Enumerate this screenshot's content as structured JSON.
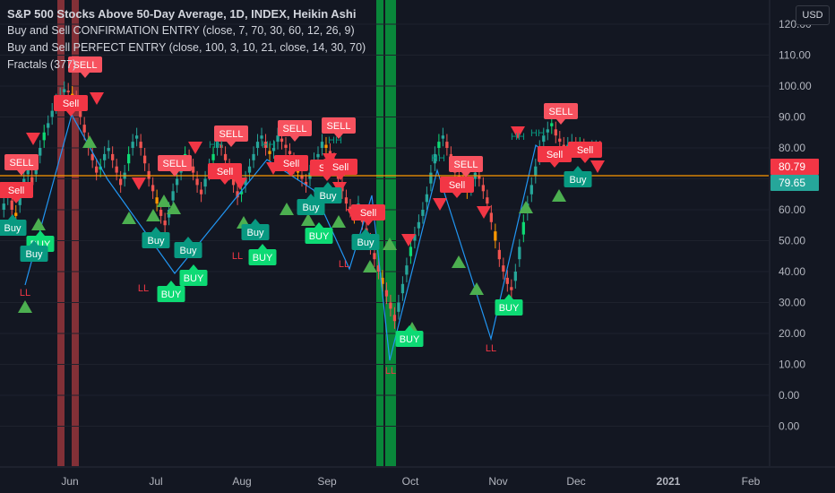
{
  "legend": {
    "title": "S&P 500 Stocks Above 50-Day Average, 1D, INDEX, Heikin Ashi",
    "line1": "Buy and Sell CONFIRMATION ENTRY (close, 7, 70, 30, 60, 12, 26, 9)",
    "line2": "Buy and Sell PERFECT ENTRY (close, 100, 3, 10, 21, close, 14, 30, 70)",
    "line3": "Fractals (377)"
  },
  "currency_button": "USD",
  "colors": {
    "bg": "#131722",
    "up": "#26a69a",
    "down": "#ef5350",
    "sell": "#f23645",
    "buy": "#0dda74",
    "orange": "#ff9800",
    "zig": "#2196f3"
  },
  "chart_data": {
    "type": "candlestick",
    "yticks": [
      0,
      10,
      20,
      30,
      40,
      50,
      60,
      70,
      80,
      90,
      100,
      110,
      120
    ],
    "xticks": [
      "Jun",
      "Jul",
      "Aug",
      "Sep",
      "Oct",
      "Nov",
      "Dec",
      "2021",
      "Feb"
    ],
    "price_tags": [
      {
        "value": "80.79",
        "color": "#f23645"
      },
      {
        "value": "79.65",
        "color": "#26a69a"
      }
    ],
    "horizontal_line": 78.5,
    "closes": [
      62,
      66,
      60,
      58,
      65,
      70,
      73,
      68,
      75,
      80,
      85,
      88,
      92,
      95,
      97,
      99,
      98,
      97,
      95,
      90,
      85,
      80,
      76,
      72,
      74,
      78,
      80,
      76,
      72,
      68,
      72,
      78,
      82,
      84,
      80,
      75,
      70,
      66,
      62,
      58,
      55,
      60,
      66,
      70,
      74,
      78,
      76,
      72,
      68,
      65,
      70,
      74,
      78,
      82,
      80,
      76,
      72,
      68,
      64,
      66,
      70,
      74,
      78,
      82,
      84,
      80,
      78,
      80,
      84,
      82,
      80,
      78,
      74,
      72,
      70,
      68,
      72,
      76,
      78,
      82,
      80,
      78,
      74,
      70,
      66,
      62,
      60,
      58,
      62,
      56,
      52,
      48,
      44,
      40,
      36,
      32,
      28,
      24,
      30,
      36,
      42,
      48,
      52,
      56,
      60,
      65,
      72,
      78,
      82,
      84,
      80,
      76,
      72,
      70,
      68,
      66,
      68,
      72,
      70,
      66,
      62,
      56,
      50,
      44,
      40,
      36,
      34,
      40,
      48,
      56,
      62,
      68,
      74,
      80,
      84,
      86,
      88,
      84,
      82,
      80,
      81,
      82,
      80,
      81,
      80,
      79,
      80,
      80,
      79.65
    ],
    "red_bands": [
      {
        "start": 64,
        "end": 72
      },
      {
        "start": 80,
        "end": 88
      }
    ],
    "green_bands": [
      {
        "start": 420,
        "end": 428
      },
      {
        "start": 430,
        "end": 442
      }
    ],
    "zigzag": [
      [
        28,
        318
      ],
      [
        80,
        128
      ],
      [
        120,
        200
      ],
      [
        195,
        305
      ],
      [
        298,
        178
      ],
      [
        350,
        212
      ],
      [
        390,
        300
      ],
      [
        415,
        218
      ],
      [
        435,
        402
      ],
      [
        488,
        190
      ],
      [
        548,
        378
      ],
      [
        598,
        162
      ],
      [
        622,
        180
      ]
    ],
    "sell_labels": [
      {
        "x": 24,
        "y": 181,
        "text": "SELL"
      },
      {
        "x": 95,
        "y": 72,
        "text": "SELL"
      },
      {
        "x": 195,
        "y": 182,
        "text": "SELL"
      },
      {
        "x": 258,
        "y": 149,
        "text": "SELL"
      },
      {
        "x": 329,
        "y": 143,
        "text": "SELL"
      },
      {
        "x": 378,
        "y": 140,
        "text": "SELL"
      },
      {
        "x": 520,
        "y": 183,
        "text": "SELL"
      },
      {
        "x": 626,
        "y": 124,
        "text": "SELL"
      },
      {
        "x": 18,
        "y": 212,
        "text": "Sell"
      },
      {
        "x": 79,
        "y": 115,
        "text": "Sell"
      },
      {
        "x": 251,
        "y": 191,
        "text": "Sell"
      },
      {
        "x": 325,
        "y": 182,
        "text": "Sell"
      },
      {
        "x": 365,
        "y": 187,
        "text": "Sell"
      },
      {
        "x": 380,
        "y": 186,
        "text": "Sell"
      },
      {
        "x": 411,
        "y": 237,
        "text": "Sell"
      },
      {
        "x": 510,
        "y": 206,
        "text": "Sell"
      },
      {
        "x": 619,
        "y": 172,
        "text": "Sell"
      },
      {
        "x": 653,
        "y": 167,
        "text": "Sell"
      }
    ],
    "buy_labels": [
      {
        "x": 45,
        "y": 272,
        "text": "BUY"
      },
      {
        "x": 191,
        "y": 328,
        "text": "BUY"
      },
      {
        "x": 216,
        "y": 310,
        "text": "BUY"
      },
      {
        "x": 293,
        "y": 287,
        "text": "BUY"
      },
      {
        "x": 356,
        "y": 263,
        "text": "BUY"
      },
      {
        "x": 457,
        "y": 378,
        "text": "BUY"
      },
      {
        "x": 568,
        "y": 343,
        "text": "BUY"
      },
      {
        "x": 14,
        "y": 254,
        "text": "Buy"
      },
      {
        "x": 38,
        "y": 283,
        "text": "Buy"
      },
      {
        "x": 174,
        "y": 268,
        "text": "Buy"
      },
      {
        "x": 210,
        "y": 279,
        "text": "Buy"
      },
      {
        "x": 285,
        "y": 259,
        "text": "Buy"
      },
      {
        "x": 347,
        "y": 231,
        "text": "Buy"
      },
      {
        "x": 366,
        "y": 218,
        "text": "Buy"
      },
      {
        "x": 408,
        "y": 270,
        "text": "Buy"
      },
      {
        "x": 645,
        "y": 200,
        "text": "Buy"
      }
    ],
    "up_arrows": [
      [
        28,
        342
      ],
      [
        43,
        250
      ],
      [
        100,
        158
      ],
      [
        144,
        243
      ],
      [
        171,
        240
      ],
      [
        183,
        224
      ],
      [
        194,
        232
      ],
      [
        272,
        248
      ],
      [
        320,
        233
      ],
      [
        344,
        245
      ],
      [
        378,
        247
      ],
      [
        413,
        297
      ],
      [
        435,
        272
      ],
      [
        460,
        366
      ],
      [
        512,
        292
      ],
      [
        532,
        322
      ],
      [
        587,
        231
      ],
      [
        624,
        218
      ]
    ],
    "down_arrows": [
      [
        37,
        155
      ],
      [
        108,
        110
      ],
      [
        155,
        205
      ],
      [
        218,
        165
      ],
      [
        268,
        205
      ],
      [
        305,
        188
      ],
      [
        368,
        178
      ],
      [
        379,
        210
      ],
      [
        395,
        240
      ],
      [
        456,
        268
      ],
      [
        491,
        228
      ],
      [
        540,
        237
      ],
      [
        578,
        148
      ],
      [
        667,
        186
      ]
    ],
    "hh_labels": [
      [
        241,
        165
      ],
      [
        300,
        165
      ],
      [
        374,
        160
      ],
      [
        489,
        180
      ],
      [
        578,
        156
      ],
      [
        600,
        152
      ]
    ],
    "ll_labels": [
      [
        28,
        330
      ],
      [
        160,
        325
      ],
      [
        265,
        289
      ],
      [
        384,
        298
      ],
      [
        436,
        417
      ],
      [
        548,
        392
      ]
    ]
  }
}
